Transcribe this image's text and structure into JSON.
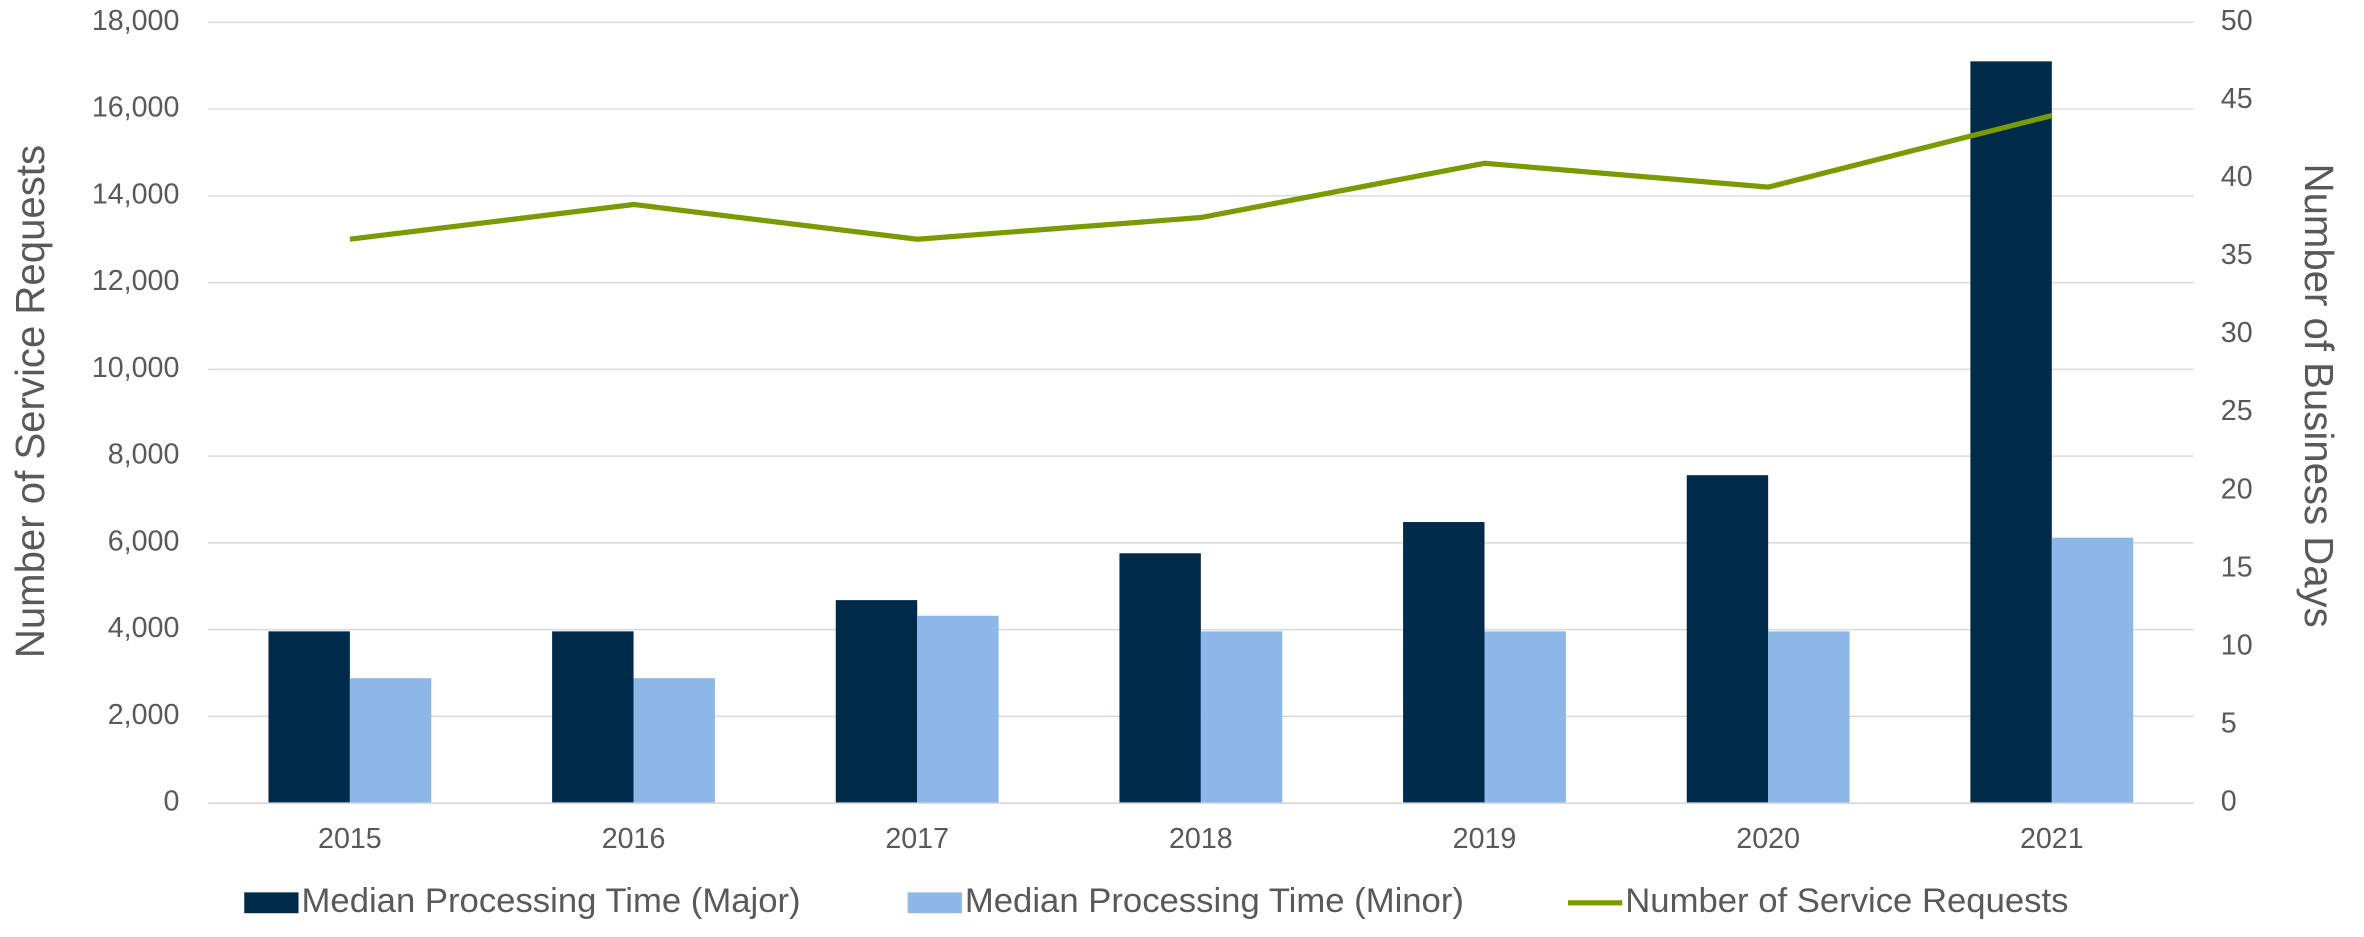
{
  "chart_data": {
    "type": "bar_line",
    "categories": [
      "2015",
      "2016",
      "2017",
      "2018",
      "2019",
      "2020",
      "2021"
    ],
    "series": [
      {
        "name": "Median Processing Time (Major)",
        "color": "#002a4a",
        "type": "bar",
        "axis": "y2",
        "values": [
          11,
          11,
          13,
          16,
          18,
          21,
          47.5
        ]
      },
      {
        "name": "Median Processing Time (Minor)",
        "color": "#8db7e7",
        "type": "bar",
        "axis": "y2",
        "values": [
          8,
          8,
          12,
          11,
          11,
          11,
          17
        ]
      },
      {
        "name": "Number of Service Requests",
        "color": "#7a9a01",
        "type": "line",
        "axis": "y",
        "values": [
          13000,
          13800,
          13000,
          13500,
          14750,
          14200,
          15850
        ]
      }
    ],
    "ylabel": "Number of Service Requests",
    "y2label": "Number of  Business Days",
    "ylim": [
      0,
      18000
    ],
    "yticks": [
      0,
      {
        "value": 2000,
        "label": "2,000"
      },
      {
        "value": 4000,
        "label": "4,000"
      },
      {
        "value": 6000,
        "label": "6,000"
      },
      {
        "value": 8000,
        "label": "8,000"
      },
      {
        "value": 10000,
        "label": "10,000"
      },
      {
        "value": 12000,
        "label": "12,000"
      },
      {
        "value": 14000,
        "label": "14,000"
      },
      {
        "value": 16000,
        "label": "16,000"
      },
      {
        "value": 18000,
        "label": "18,000"
      }
    ],
    "y2lim": [
      0,
      50
    ],
    "y2ticks": [
      0,
      5,
      10,
      15,
      20,
      25,
      30,
      35,
      40,
      45,
      50
    ],
    "grid": true,
    "legend": "bottom"
  }
}
